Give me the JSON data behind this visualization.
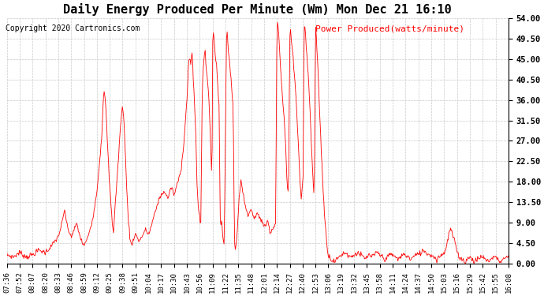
{
  "title": "Daily Energy Produced Per Minute (Wm) Mon Dec 21 16:10",
  "copyright": "Copyright 2020 Cartronics.com",
  "legend_label": "Power Produced(watts/minute)",
  "line_color": "#ff0000",
  "background_color": "#ffffff",
  "grid_color": "#bbbbbb",
  "ylim": [
    0,
    54
  ],
  "yticks": [
    0,
    4.5,
    9.0,
    13.5,
    18.0,
    22.5,
    27.0,
    31.5,
    36.0,
    40.5,
    45.0,
    49.5,
    54.0
  ],
  "ytick_labels": [
    "0.00",
    "4.50",
    "9.00",
    "13.50",
    "18.00",
    "22.50",
    "27.00",
    "31.50",
    "36.00",
    "40.50",
    "45.00",
    "49.50",
    "54.00"
  ],
  "xtick_labels": [
    "07:36",
    "07:52",
    "08:07",
    "08:20",
    "08:33",
    "08:46",
    "08:59",
    "09:12",
    "09:25",
    "09:38",
    "09:51",
    "10:04",
    "10:17",
    "10:30",
    "10:43",
    "10:56",
    "11:09",
    "11:22",
    "11:35",
    "11:48",
    "12:01",
    "12:14",
    "12:27",
    "12:40",
    "12:53",
    "13:06",
    "13:19",
    "13:32",
    "13:45",
    "13:58",
    "14:11",
    "14:24",
    "14:37",
    "14:50",
    "15:03",
    "15:16",
    "15:29",
    "15:42",
    "15:55",
    "16:08"
  ],
  "title_fontsize": 11,
  "copyright_fontsize": 7,
  "legend_fontsize": 8,
  "tick_fontsize": 6.5
}
